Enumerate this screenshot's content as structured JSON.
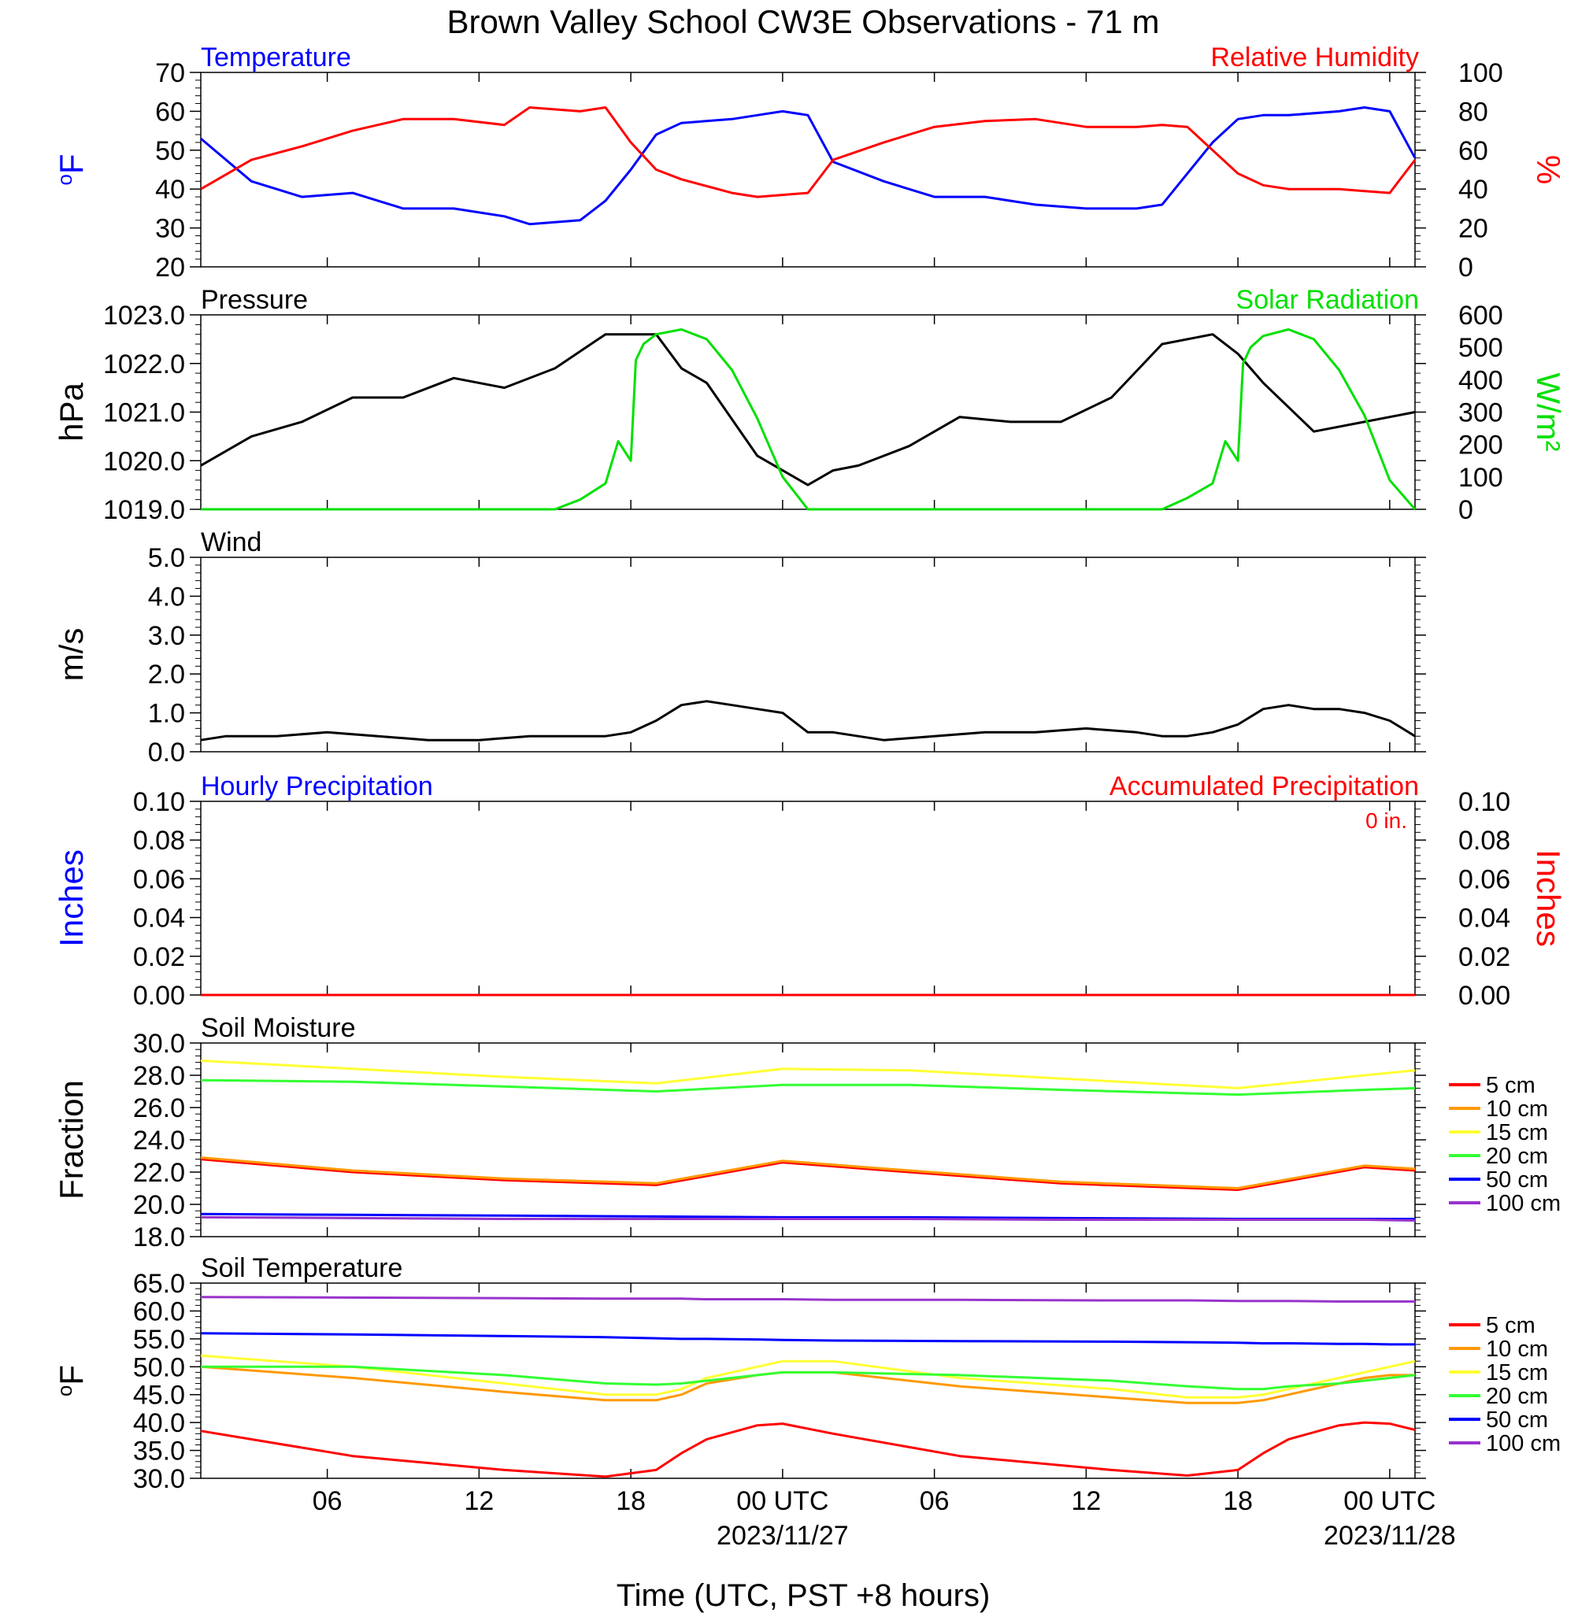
{
  "title": "Brown Valley School CW3E Observations - 71 m",
  "xlabel": "Time (UTC, PST +8 hours)",
  "x_axis": {
    "range_hours": [
      0,
      48
    ],
    "ticks": [
      {
        "h": 5,
        "label": "06",
        "date": ""
      },
      {
        "h": 11,
        "label": "12",
        "date": ""
      },
      {
        "h": 17,
        "label": "18",
        "date": ""
      },
      {
        "h": 23,
        "label": "00 UTC",
        "date": "2023/11/27"
      },
      {
        "h": 29,
        "label": "06",
        "date": ""
      },
      {
        "h": 35,
        "label": "12",
        "date": ""
      },
      {
        "h": 41,
        "label": "18",
        "date": ""
      },
      {
        "h": 47,
        "label": "00 UTC",
        "date": "2023/11/28"
      }
    ]
  },
  "colors": {
    "blue": "#0000ff",
    "red": "#ff0000",
    "green": "#00e000",
    "black": "#000000"
  },
  "legend_labels": [
    "5 cm",
    "10 cm",
    "15 cm",
    "20 cm",
    "50 cm",
    "100 cm"
  ],
  "legend_colors": [
    "#ff0000",
    "#ff9900",
    "#ffff33",
    "#33ff33",
    "#0000ff",
    "#9933cc"
  ],
  "chart_data": [
    {
      "panel": "temperature_rh",
      "type": "line",
      "left_title": "Temperature",
      "right_title": "Relative Humidity",
      "ylabel": "oF",
      "ylabel_right": "%",
      "ylim": [
        20,
        70
      ],
      "ylim_right": [
        0,
        100
      ],
      "yticks": [
        "20",
        "30",
        "40",
        "50",
        "60",
        "70"
      ],
      "yticks_right": [
        "0",
        "20",
        "40",
        "60",
        "80",
        "100"
      ],
      "x": [
        0,
        2,
        4,
        6,
        8,
        10,
        12,
        13,
        15,
        16,
        17,
        18,
        19,
        21,
        22,
        23,
        24,
        25,
        27,
        29,
        31,
        33,
        35,
        37,
        38,
        39,
        40,
        41,
        42,
        43,
        45,
        46,
        47,
        48
      ],
      "series": [
        {
          "name": "Temperature",
          "axis": "left",
          "color": "#0000ff",
          "values": [
            53,
            42,
            38,
            39,
            35,
            35,
            33,
            31,
            32,
            37,
            45,
            54,
            57,
            58,
            59,
            60,
            59,
            47,
            42,
            38,
            38,
            36,
            35,
            35,
            36,
            44,
            52,
            58,
            59,
            59,
            60,
            61,
            60,
            48
          ]
        },
        {
          "name": "Relative Humidity",
          "axis": "right",
          "color": "#ff0000",
          "values": [
            40,
            55,
            62,
            70,
            76,
            76,
            73,
            82,
            80,
            82,
            64,
            50,
            45,
            38,
            36,
            37,
            38,
            55,
            64,
            72,
            75,
            76,
            72,
            72,
            73,
            72,
            60,
            48,
            42,
            40,
            40,
            39,
            38,
            55
          ]
        }
      ]
    },
    {
      "panel": "pressure_solar",
      "type": "line",
      "left_title": "Pressure",
      "right_title": "Solar Radiation",
      "ylabel": "hPa",
      "ylabel_right": "W/m²",
      "ylim": [
        1019.0,
        1023.0
      ],
      "ylim_right": [
        0,
        600
      ],
      "yticks": [
        "1019.0",
        "1020.0",
        "1021.0",
        "1022.0",
        "1023.0"
      ],
      "yticks_right": [
        "0",
        "100",
        "200",
        "300",
        "400",
        "500",
        "600"
      ],
      "series": [
        {
          "name": "Pressure",
          "axis": "left",
          "color": "#000000",
          "x": [
            0,
            2,
            4,
            6,
            8,
            10,
            12,
            14,
            16,
            18,
            19,
            20,
            22,
            24,
            25,
            26,
            28,
            30,
            32,
            34,
            36,
            38,
            40,
            41,
            42,
            44,
            46,
            48
          ],
          "values": [
            1019.9,
            1020.5,
            1020.8,
            1021.3,
            1021.3,
            1021.7,
            1021.5,
            1021.9,
            1022.6,
            1022.6,
            1021.9,
            1021.6,
            1020.1,
            1019.5,
            1019.8,
            1019.9,
            1020.3,
            1020.9,
            1020.8,
            1020.8,
            1021.3,
            1022.4,
            1022.6,
            1022.2,
            1021.6,
            1020.6,
            1020.8,
            1021.0
          ]
        },
        {
          "name": "Solar Radiation",
          "axis": "right",
          "color": "#00e000",
          "x": [
            0,
            14,
            15,
            16,
            16.5,
            17,
            17.2,
            17.5,
            18,
            19,
            20,
            21,
            22,
            23,
            24,
            25,
            38,
            39,
            40,
            40.5,
            41,
            41.2,
            41.5,
            42,
            43,
            44,
            45,
            46,
            47,
            48
          ],
          "values": [
            0,
            0,
            30,
            80,
            210,
            150,
            460,
            510,
            540,
            555,
            525,
            430,
            280,
            100,
            0,
            0,
            0,
            35,
            80,
            210,
            150,
            450,
            500,
            535,
            555,
            525,
            430,
            290,
            90,
            0
          ]
        }
      ]
    },
    {
      "panel": "wind",
      "type": "line",
      "left_title": "Wind",
      "ylabel": "m/s",
      "ylim": [
        0,
        5
      ],
      "yticks": [
        "0.0",
        "1.0",
        "2.0",
        "3.0",
        "4.0",
        "5.0"
      ],
      "series": [
        {
          "name": "Wind",
          "color": "#000000",
          "x": [
            0,
            1,
            3,
            5,
            7,
            9,
            11,
            13,
            15,
            16,
            17,
            18,
            19,
            20,
            21,
            22,
            23,
            24,
            25,
            27,
            29,
            31,
            33,
            35,
            37,
            38,
            39,
            40,
            41,
            42,
            43,
            44,
            45,
            46,
            47,
            48
          ],
          "values": [
            0.3,
            0.4,
            0.4,
            0.5,
            0.4,
            0.3,
            0.3,
            0.4,
            0.4,
            0.4,
            0.5,
            0.8,
            1.2,
            1.3,
            1.2,
            1.1,
            1.0,
            0.5,
            0.5,
            0.3,
            0.4,
            0.5,
            0.5,
            0.6,
            0.5,
            0.4,
            0.4,
            0.5,
            0.7,
            1.1,
            1.2,
            1.1,
            1.1,
            1.0,
            0.8,
            0.4
          ]
        }
      ]
    },
    {
      "panel": "precipitation",
      "type": "line",
      "left_title": "Hourly Precipitation",
      "right_title": "Accumulated Precipitation",
      "accum_label": "0 in.",
      "ylabel": "Inches",
      "ylabel_right": "Inches",
      "ylim": [
        0,
        0.1
      ],
      "ylim_right": [
        0,
        0.1
      ],
      "yticks": [
        "0.00",
        "0.02",
        "0.04",
        "0.06",
        "0.08",
        "0.10"
      ],
      "yticks_right": [
        "0.00",
        "0.02",
        "0.04",
        "0.06",
        "0.08",
        "0.10"
      ],
      "series": [
        {
          "name": "Hourly Precipitation",
          "color": "#0000ff",
          "x": [
            0,
            48
          ],
          "values": [
            0,
            0
          ]
        },
        {
          "name": "Accumulated Precipitation",
          "color": "#ff0000",
          "x": [
            0,
            48
          ],
          "values": [
            0,
            0
          ]
        }
      ]
    },
    {
      "panel": "soil_moisture",
      "type": "line",
      "left_title": "Soil Moisture",
      "ylabel": "Fraction",
      "ylim": [
        18.0,
        30.0
      ],
      "yticks": [
        "18.0",
        "20.0",
        "22.0",
        "24.0",
        "26.0",
        "28.0",
        "30.0"
      ],
      "x": [
        0,
        6,
        12,
        18,
        23,
        28,
        34,
        41,
        46,
        48
      ],
      "series": [
        {
          "name": "5 cm",
          "color": "#ff0000",
          "values": [
            22.8,
            22.0,
            21.5,
            21.2,
            22.6,
            22.0,
            21.3,
            20.9,
            22.3,
            22.1
          ]
        },
        {
          "name": "10 cm",
          "color": "#ff9900",
          "values": [
            22.9,
            22.1,
            21.6,
            21.3,
            22.7,
            22.1,
            21.4,
            21.0,
            22.4,
            22.2
          ]
        },
        {
          "name": "15 cm",
          "color": "#ffff33",
          "values": [
            28.9,
            28.4,
            27.9,
            27.5,
            28.4,
            28.3,
            27.8,
            27.2,
            28.0,
            28.3
          ]
        },
        {
          "name": "20 cm",
          "color": "#33ff33",
          "values": [
            27.7,
            27.6,
            27.3,
            27.0,
            27.4,
            27.4,
            27.1,
            26.8,
            27.1,
            27.2
          ]
        },
        {
          "name": "50 cm",
          "color": "#0000ff",
          "values": [
            19.4,
            19.35,
            19.3,
            19.25,
            19.2,
            19.2,
            19.15,
            19.1,
            19.1,
            19.1
          ]
        },
        {
          "name": "100 cm",
          "color": "#9933cc",
          "values": [
            19.2,
            19.15,
            19.1,
            19.1,
            19.1,
            19.1,
            19.05,
            19.05,
            19.05,
            19.0
          ]
        }
      ]
    },
    {
      "panel": "soil_temperature",
      "type": "line",
      "left_title": "Soil Temperature",
      "ylabel": "oF",
      "ylim": [
        30.0,
        65.0
      ],
      "yticks": [
        "30.0",
        "35.0",
        "40.0",
        "45.0",
        "50.0",
        "55.0",
        "60.0",
        "65.0"
      ],
      "x": [
        0,
        6,
        12,
        16,
        18,
        19,
        20,
        22,
        23,
        25,
        30,
        36,
        39,
        41,
        42,
        43,
        45,
        46,
        47,
        48
      ],
      "series": [
        {
          "name": "5 cm",
          "color": "#ff0000",
          "values": [
            38.5,
            34,
            31.5,
            30.3,
            31.5,
            34.5,
            37,
            39.5,
            39.8,
            38,
            34,
            31.5,
            30.5,
            31.5,
            34.5,
            37,
            39.5,
            40,
            39.8,
            38.7
          ]
        },
        {
          "name": "10 cm",
          "color": "#ff9900",
          "values": [
            50,
            48,
            45.5,
            44,
            44,
            45,
            47,
            48.5,
            49,
            49,
            46.5,
            44.5,
            43.5,
            43.5,
            44,
            45,
            47,
            48,
            48.5,
            48.5
          ]
        },
        {
          "name": "15 cm",
          "color": "#ffff33",
          "values": [
            52,
            50,
            47,
            45,
            45,
            46,
            48,
            50,
            51,
            51,
            48,
            46,
            44.5,
            44.5,
            45,
            46,
            48,
            49,
            50,
            51
          ]
        },
        {
          "name": "20 cm",
          "color": "#33ff33",
          "values": [
            50,
            50,
            48.5,
            47,
            46.8,
            47,
            47.5,
            48.5,
            49,
            49,
            48.5,
            47.5,
            46.5,
            46,
            46,
            46.5,
            47,
            47.5,
            48,
            48.5
          ]
        },
        {
          "name": "50 cm",
          "color": "#0000ff",
          "values": [
            56,
            55.8,
            55.5,
            55.3,
            55.1,
            55,
            55,
            54.9,
            54.8,
            54.7,
            54.6,
            54.5,
            54.4,
            54.3,
            54.2,
            54.2,
            54.1,
            54.1,
            54,
            54
          ]
        },
        {
          "name": "100 cm",
          "color": "#9933cc",
          "values": [
            62.5,
            62.4,
            62.3,
            62.2,
            62.2,
            62.2,
            62.1,
            62.1,
            62.1,
            62,
            62,
            61.9,
            61.9,
            61.8,
            61.8,
            61.8,
            61.7,
            61.7,
            61.7,
            61.7
          ]
        }
      ]
    }
  ]
}
